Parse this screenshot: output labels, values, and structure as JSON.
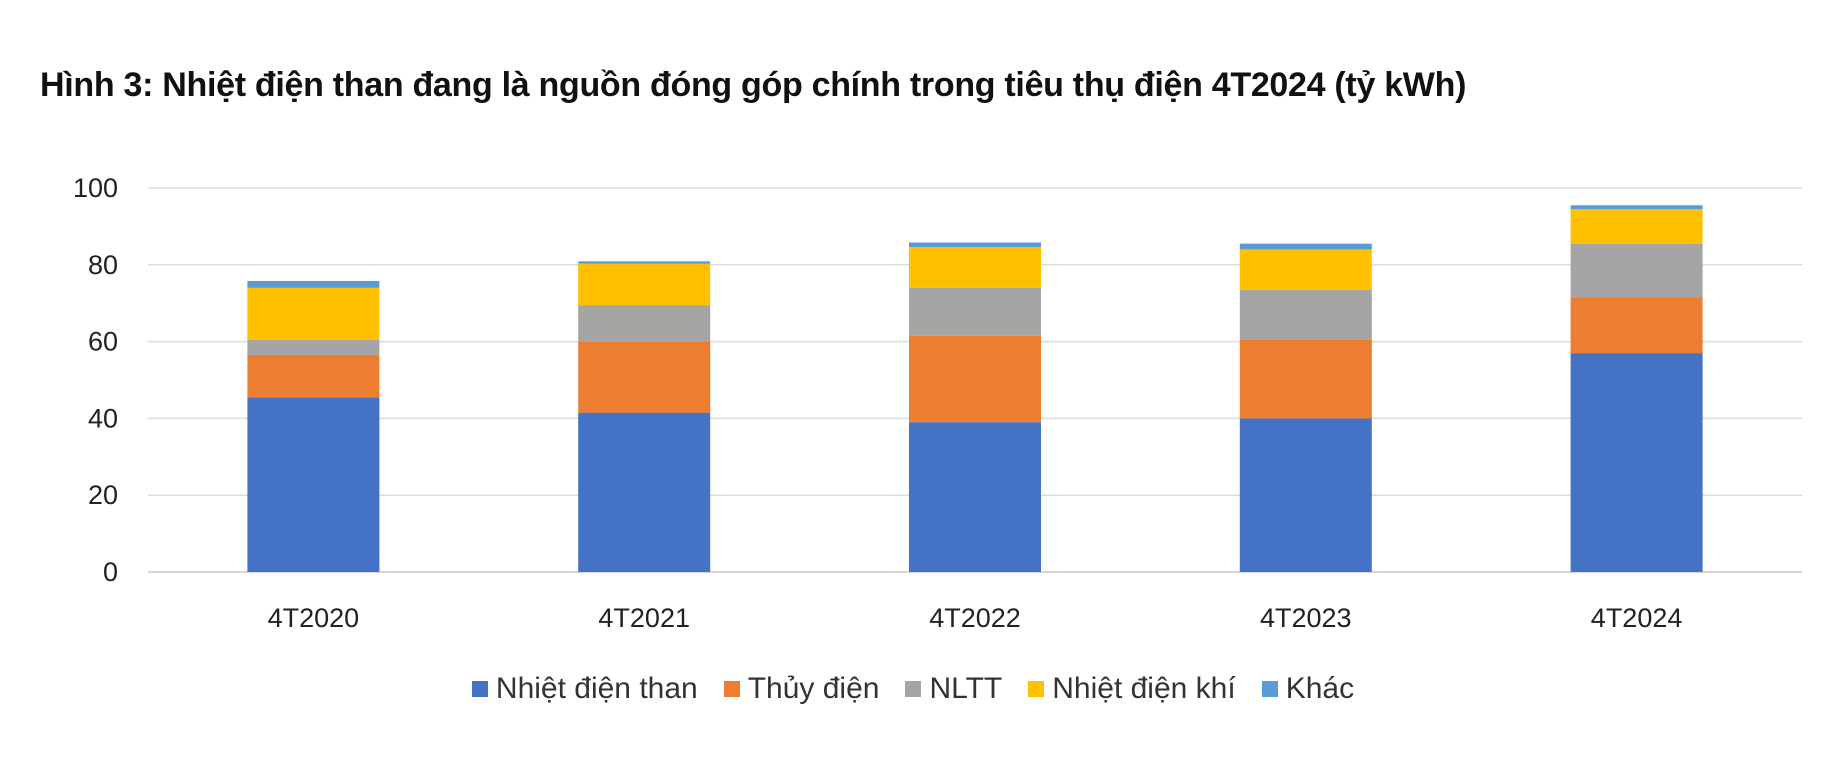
{
  "chart_data": {
    "type": "bar",
    "stacked": true,
    "title": "Hình 3: Nhiệt điện than đang là nguồn đóng góp chính trong tiêu thụ điện 4T2024 (tỷ kWh)",
    "xlabel": "",
    "ylabel": "",
    "ylim": [
      0,
      100
    ],
    "yticks": [
      0,
      20,
      40,
      60,
      80,
      100
    ],
    "grid": true,
    "legend_position": "bottom",
    "categories": [
      "4T2020",
      "4T2021",
      "4T2022",
      "4T2023",
      "4T2024"
    ],
    "series": [
      {
        "name": "Nhiệt điện than",
        "color": "#4472C4",
        "values": [
          45.5,
          41.5,
          39.0,
          40.0,
          57.0
        ]
      },
      {
        "name": "Thủy điện",
        "color": "#ED7D31",
        "values": [
          11.0,
          18.5,
          22.5,
          20.5,
          14.5
        ]
      },
      {
        "name": "NLTT",
        "color": "#A5A5A5",
        "values": [
          4.0,
          9.5,
          12.5,
          13.0,
          14.0
        ]
      },
      {
        "name": "Nhiệt điện khí",
        "color": "#FFC000",
        "values": [
          13.5,
          10.8,
          10.6,
          10.5,
          9.0
        ]
      },
      {
        "name": "Khác",
        "color": "#5B9BD5",
        "values": [
          1.8,
          0.6,
          1.2,
          1.5,
          1.0
        ]
      }
    ]
  }
}
